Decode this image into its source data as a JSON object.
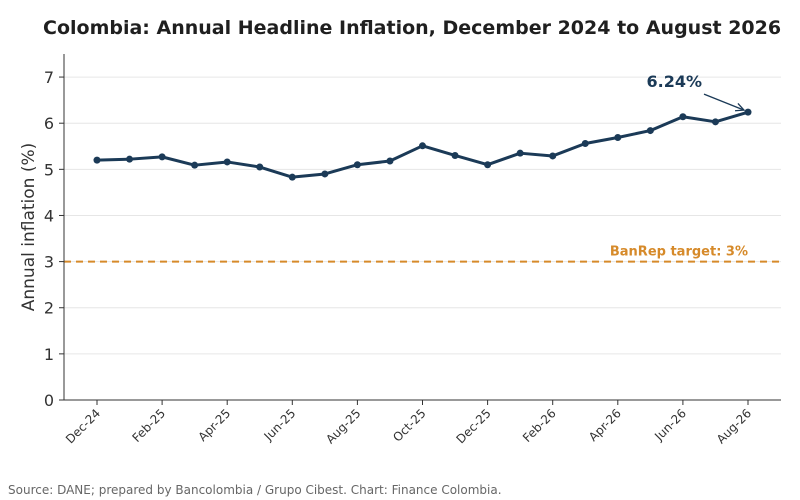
{
  "chart_data": {
    "type": "line",
    "title": "Colombia: Annual Headline Inflation, December 2024 to August 2026",
    "ylabel": "Annual inflation (%)",
    "xlabel": "",
    "ylim": [
      0,
      7.5
    ],
    "yticks": [
      0,
      1,
      2,
      3,
      4,
      5,
      6,
      7
    ],
    "grid": true,
    "x": [
      "Dec-24",
      "Jan-25",
      "Feb-25",
      "Mar-25",
      "Apr-25",
      "May-25",
      "Jun-25",
      "Jul-25",
      "Aug-25",
      "Sep-25",
      "Oct-25",
      "Nov-25",
      "Dec-25",
      "Jan-26",
      "Feb-26",
      "Mar-26",
      "Apr-26",
      "May-26",
      "Jun-26",
      "Jul-26",
      "Aug-26"
    ],
    "xtick_labels": [
      "Dec-24",
      "Feb-25",
      "Apr-25",
      "Jun-25",
      "Aug-25",
      "Oct-25",
      "Dec-25",
      "Feb-26",
      "Apr-26",
      "Jun-26",
      "Aug-26"
    ],
    "series": [
      {
        "values": [
          5.2,
          5.22,
          5.27,
          5.09,
          5.16,
          5.05,
          4.83,
          4.9,
          5.1,
          5.18,
          5.51,
          5.3,
          5.1,
          5.35,
          5.29,
          5.56,
          5.69,
          5.84,
          6.14,
          6.03,
          6.24
        ],
        "color": "#1b3a57"
      }
    ],
    "reference_line": {
      "value": 3,
      "label": "BanRep target: 3%",
      "color": "#d68a2a",
      "style": "dashed"
    },
    "annotation": {
      "text": "6.24%",
      "x": "Aug-26",
      "y": 6.24
    }
  },
  "footer": {
    "source": "Source: DANE; prepared by Bancolombia / Grupo Cibest. Chart: Finance Colombia."
  }
}
